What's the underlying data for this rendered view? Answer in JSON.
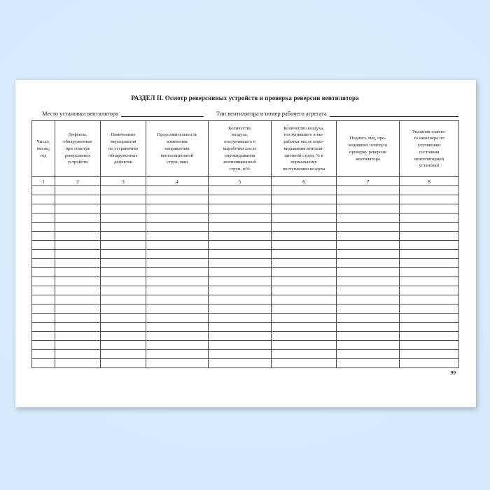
{
  "colors": {
    "background_top": "#d3e6fb",
    "background_bottom": "#ddeefd",
    "paper": "#ffffff",
    "table_border": "#4a4a4a",
    "text": "#1c1c1c"
  },
  "page": {
    "title": "РАЗДЕЛ II. Осмотр реверсивных устройств и проверка реверсии вентилятора",
    "fields": {
      "location_label": "Место установки вентилятора",
      "type_label": "Тип вентилятора и номер рабочего агрегата"
    },
    "page_number": "99"
  },
  "table": {
    "columns": [
      {
        "number": "1",
        "header": [
          "Число,",
          "месяц,",
          "год"
        ]
      },
      {
        "number": "2",
        "header": [
          "Дефекты,",
          "обнаруженные",
          "при осмотре",
          "реверсивных",
          "устройств"
        ]
      },
      {
        "number": "3",
        "header": [
          "Намеченные",
          "мероприятия",
          "по устранению",
          "обнаруженных",
          "дефектов"
        ]
      },
      {
        "number": "4",
        "header": [
          "Продолжительность",
          "изменения",
          "направления",
          "вентиляционной",
          "струи, мин"
        ]
      },
      {
        "number": "5",
        "header": [
          "Количество",
          "воздуха,",
          "поступившего в",
          "выработки после",
          "опрокидывания",
          "вентиляционной",
          "струи, м³/с"
        ]
      },
      {
        "number": "6",
        "header": [
          "Количество воздуха,",
          "поступившего в вы-",
          "работки после опро-",
          "кидывания вентиля-",
          "ционной струи, % к",
          "нормальному",
          "поступлению воздуха"
        ]
      },
      {
        "number": "7",
        "header": [
          "Подпись лиц, про-",
          "водивших осмотр и",
          "проверку реверсии",
          "вентилятора"
        ]
      },
      {
        "number": "8",
        "header": [
          "Указания главно-",
          "го инженера по",
          "улучшению",
          "состояния",
          "вентиляторной",
          "установки"
        ]
      }
    ],
    "empty_row_count": 20
  }
}
